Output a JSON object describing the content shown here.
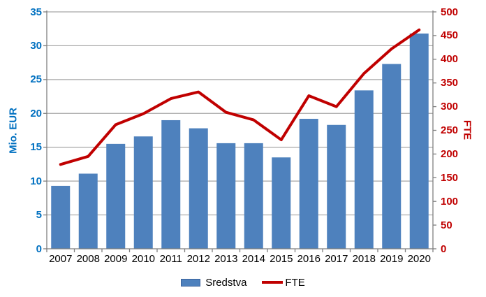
{
  "chart_data": {
    "type": "combo",
    "title": "",
    "categories": [
      "2007",
      "2008",
      "2009",
      "2010",
      "2011",
      "2012",
      "2013",
      "2014",
      "2015",
      "2016",
      "2017",
      "2018",
      "2019",
      "2020"
    ],
    "series": [
      {
        "name": "Sredstva",
        "type": "bar",
        "axis": "left",
        "color": "#4E81BD",
        "values": [
          9.3,
          11.1,
          15.5,
          16.6,
          19.0,
          17.8,
          15.6,
          15.6,
          13.5,
          19.2,
          18.3,
          23.4,
          27.3,
          31.8
        ]
      },
      {
        "name": "FTE",
        "type": "line",
        "axis": "right",
        "color": "#C00000",
        "values": [
          178,
          195,
          262,
          285,
          317,
          331,
          288,
          272,
          230,
          323,
          300,
          370,
          422,
          462
        ]
      }
    ],
    "left_axis": {
      "title": "Mio. EUR",
      "min": 0,
      "max": 35,
      "step": 5,
      "ticks": [
        "0",
        "5",
        "10",
        "15",
        "20",
        "25",
        "30",
        "35"
      ],
      "color": "#0070C0"
    },
    "right_axis": {
      "title": "FTE",
      "min": 0,
      "max": 500,
      "step": 50,
      "ticks": [
        "0",
        "50",
        "100",
        "150",
        "200",
        "250",
        "300",
        "350",
        "400",
        "450",
        "500"
      ],
      "color": "#C00000"
    },
    "x_axis": {
      "tick_color": "#000000"
    },
    "grid_on": true,
    "grid_color": "#A6A6A6",
    "axis_line_color": "#7F7F7F",
    "background": "#FFFFFF",
    "legend_position": "bottom"
  }
}
